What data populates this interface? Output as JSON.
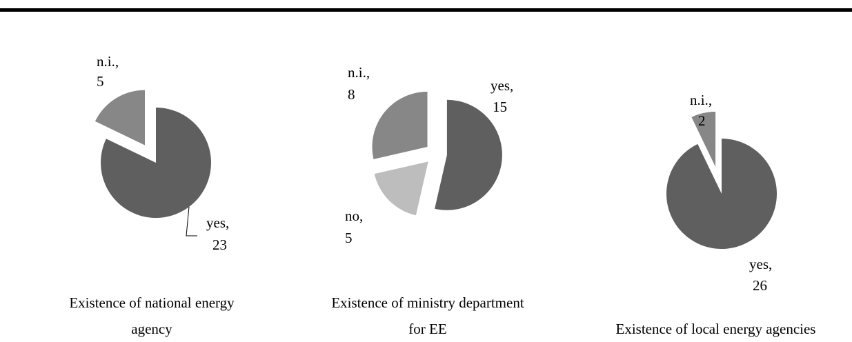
{
  "colors": {
    "yes": "#5f5f5f",
    "no": "#bdbdbd",
    "n.i.": "#878787"
  },
  "chart_data": [
    {
      "type": "pie",
      "title": "Existence of national energy agency",
      "slices": [
        {
          "label": "yes",
          "value": 23
        },
        {
          "label": "n.i.",
          "value": 5
        }
      ],
      "legend": "none",
      "data_labels": [
        "yes, 23",
        "n.i., 5"
      ]
    },
    {
      "type": "pie",
      "title": "Existence of ministry department for EE",
      "slices": [
        {
          "label": "yes",
          "value": 15
        },
        {
          "label": "no",
          "value": 5
        },
        {
          "label": "n.i.",
          "value": 8
        }
      ],
      "legend": "none",
      "data_labels": [
        "yes, 15",
        "no, 5",
        "n.i., 8"
      ]
    },
    {
      "type": "pie",
      "title": "Existence of local energy agencies",
      "slices": [
        {
          "label": "yes",
          "value": 26
        },
        {
          "label": "n.i.",
          "value": 2
        }
      ],
      "legend": "none",
      "data_labels": [
        "yes, 26",
        "n.i., 2"
      ]
    }
  ],
  "captions": [
    [
      "Existence of national energy",
      "agency"
    ],
    [
      "Existence of ministry department",
      "for EE"
    ],
    [
      "Existence of local energy agencies"
    ]
  ]
}
